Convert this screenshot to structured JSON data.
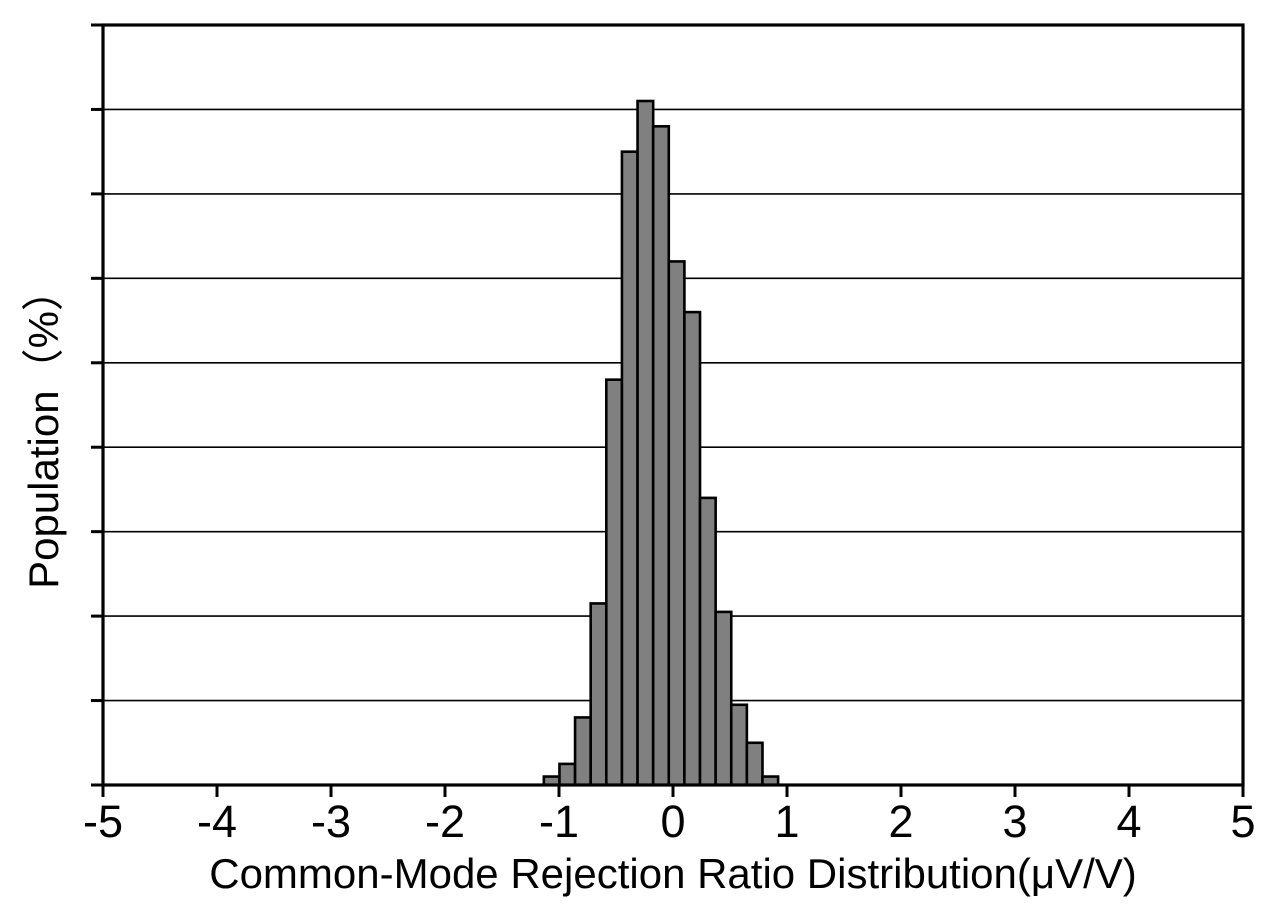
{
  "chart_data": {
    "type": "bar",
    "subtype": "histogram",
    "xlabel": "Common-Mode Rejection Ratio Distribution(μV/V)",
    "ylabel": "Population（%）",
    "xlim": [
      -5,
      5
    ],
    "ylim": [
      0,
      18
    ],
    "x_tick_labels": [
      "-5",
      "-4",
      "-3",
      "-2",
      "-1",
      "0",
      "1",
      "2",
      "3",
      "4",
      "5"
    ],
    "x_tick_values": [
      -5,
      -4,
      -3,
      -2,
      -1,
      0,
      1,
      2,
      3,
      4,
      5
    ],
    "y_tick_step": 2,
    "y_tick_labels_shown": false,
    "grid": "horizontal",
    "legend": "none",
    "bins": {
      "start": -1.133,
      "width": 0.137,
      "count": 15,
      "unit": "μV/V"
    },
    "bin_centers": [
      -1.065,
      -0.928,
      -0.791,
      -0.654,
      -0.517,
      -0.38,
      -0.244,
      -0.107,
      0.03,
      0.167,
      0.304,
      0.441,
      0.577,
      0.714,
      0.851
    ],
    "values_percent": [
      0.2,
      0.5,
      1.6,
      4.3,
      9.6,
      15.0,
      16.2,
      15.6,
      12.4,
      11.2,
      6.8,
      4.1,
      1.9,
      1.0,
      0.2
    ],
    "colors": {
      "bar_fill": "#808080",
      "bar_stroke": "#000000",
      "axis": "#000000",
      "grid": "#000000",
      "text": "#000000",
      "background": "#ffffff"
    }
  }
}
